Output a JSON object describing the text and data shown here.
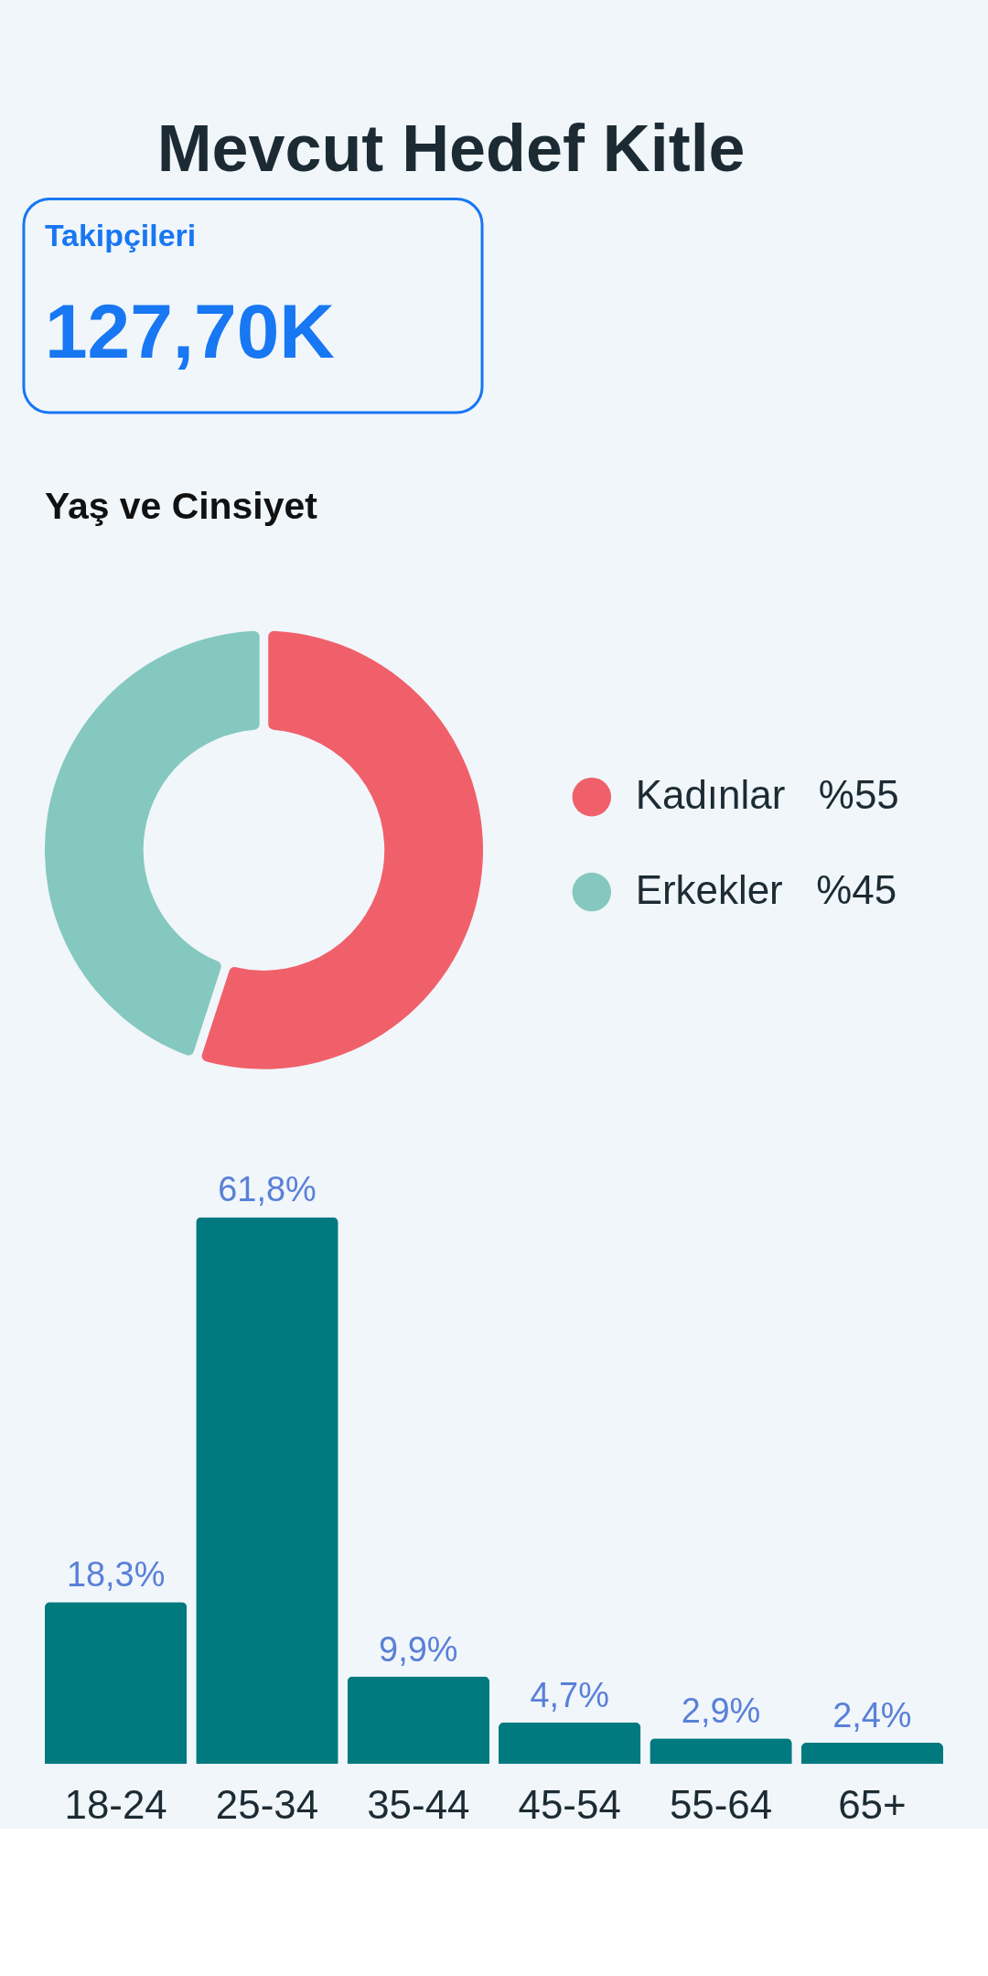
{
  "chart_data": [
    {
      "type": "other",
      "title": "Mevcut Hedef Kitle",
      "annotations": [
        "Takipçileri",
        "127,70K"
      ]
    },
    {
      "type": "donut",
      "title": "Yaş ve Cinsiyet",
      "categories": [
        "Kadınlar",
        "Erkekler"
      ],
      "values": [
        55,
        45
      ],
      "colors": [
        "#f0606b",
        "#85c8bf"
      ],
      "value_labels": [
        "%55",
        "%45"
      ],
      "legend": "right"
    },
    {
      "type": "bar",
      "categories": [
        "18-24",
        "25-34",
        "35-44",
        "45-54",
        "55-64",
        "65+"
      ],
      "values": [
        18.3,
        61.8,
        9.9,
        4.7,
        2.9,
        2.4
      ],
      "color": "#007a7e",
      "value_labels": [
        "18,3%",
        "61,8%",
        "9,9%",
        "4,7%",
        "2,9%",
        "2,4%"
      ]
    }
  ]
}
